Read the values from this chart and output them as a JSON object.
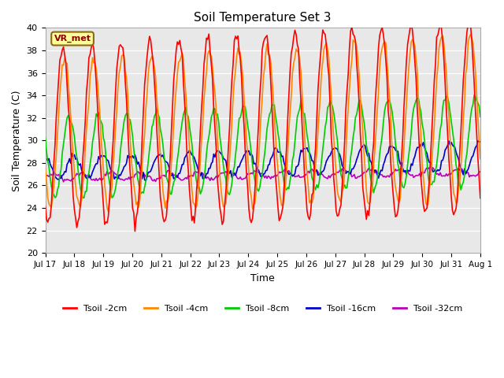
{
  "title": "Soil Temperature Set 3",
  "xlabel": "Time",
  "ylabel": "Soil Temperature (C)",
  "ylim": [
    20,
    40
  ],
  "n_days": 15,
  "background_color": "#e8e8e8",
  "legend_label": "VR_met",
  "line_colors": {
    "2cm": "#ff0000",
    "4cm": "#ff8800",
    "8cm": "#00cc00",
    "16cm": "#0000cc",
    "32cm": "#bb00bb"
  },
  "legend_entries": [
    "Tsoil -2cm",
    "Tsoil -4cm",
    "Tsoil -8cm",
    "Tsoil -16cm",
    "Tsoil -32cm"
  ],
  "tick_labels": [
    "Jul 17",
    "Jul 18",
    "Jul 19",
    "Jul 20",
    "Jul 21",
    "Jul 22",
    "Jul 23",
    "Jul 24",
    "Jul 25",
    "Jul 26",
    "Jul 27",
    "Jul 28",
    "Jul 29",
    "Jul 30",
    "Jul 31",
    "Aug 1"
  ],
  "tick_positions": [
    0,
    1,
    2,
    3,
    4,
    5,
    6,
    7,
    8,
    9,
    10,
    11,
    12,
    13,
    14,
    15
  ]
}
